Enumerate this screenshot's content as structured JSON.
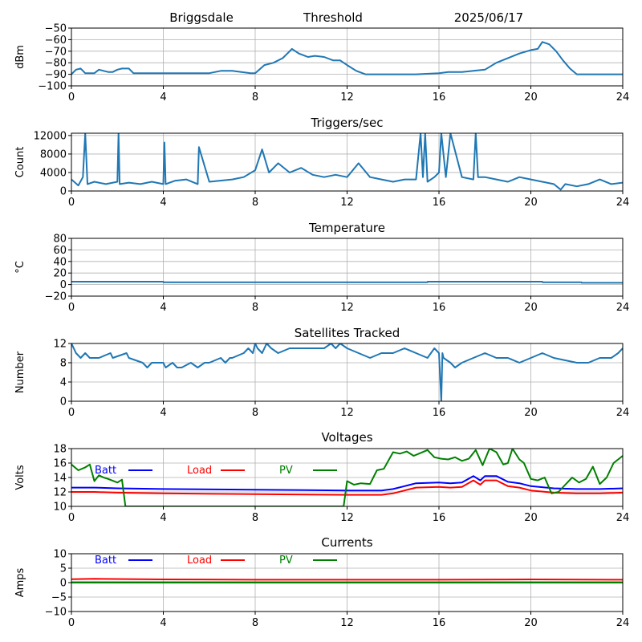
{
  "header": {
    "site": "Briggsdale",
    "label": "Threshold",
    "date": "2025/06/17"
  },
  "colors": {
    "default": "#1f77b4",
    "batt": "#0000ff",
    "load": "#ff0000",
    "pv": "#008000",
    "grid": "#b0b0b0"
  },
  "chart_data": [
    {
      "type": "line",
      "title": "",
      "xlabel": "",
      "ylabel": "dBm",
      "xlim": [
        0,
        24
      ],
      "ylim": [
        -100,
        -50
      ],
      "xticks": [
        0,
        4,
        8,
        12,
        16,
        20,
        24
      ],
      "yticks": [
        -100,
        -90,
        -80,
        -70,
        -60,
        -50
      ],
      "grid": true,
      "series": [
        {
          "x": [
            0,
            0.2,
            0.4,
            0.6,
            1.0,
            1.2,
            1.4,
            1.6,
            1.8,
            2.0,
            2.2,
            2.5,
            2.7,
            3.0,
            4.0,
            5.0,
            6.0,
            6.5,
            7.0,
            7.4,
            7.8,
            8.0,
            8.4,
            8.8,
            9.2,
            9.4,
            9.6,
            9.9,
            10.3,
            10.6,
            11.0,
            11.4,
            11.7,
            12.0,
            12.4,
            12.8,
            13.0,
            14.0,
            15.0,
            16.0,
            16.4,
            17.0,
            18.0,
            18.5,
            19.0,
            19.5,
            20.0,
            20.3,
            20.5,
            20.8,
            21.1,
            21.4,
            21.7,
            22.0,
            23.0,
            24.0
          ],
          "y": [
            -90,
            -86,
            -85,
            -89,
            -89,
            -86,
            -87,
            -88,
            -88,
            -86,
            -85,
            -85,
            -89,
            -89,
            -89,
            -89,
            -89,
            -87,
            -87,
            -88,
            -89,
            -89,
            -82,
            -80,
            -76,
            -72,
            -68,
            -72,
            -75,
            -74,
            -75,
            -78,
            -78,
            -82,
            -87,
            -90,
            -90,
            -90,
            -90,
            -89,
            -88,
            -88,
            -86,
            -80,
            -76,
            -72,
            -69,
            -68,
            -62,
            -64,
            -70,
            -78,
            -85,
            -90,
            -90,
            -90
          ]
        }
      ]
    },
    {
      "type": "line",
      "title": "Triggers/sec",
      "xlabel": "",
      "ylabel": "Count",
      "xlim": [
        0,
        24
      ],
      "ylim": [
        0,
        12500
      ],
      "xticks": [
        0,
        4,
        8,
        12,
        16,
        20,
        24
      ],
      "yticks": [
        0,
        4000,
        8000,
        12000
      ],
      "grid": true,
      "series": [
        {
          "x": [
            0,
            0.3,
            0.5,
            0.6,
            0.7,
            1.0,
            1.5,
            2.0,
            2.05,
            2.1,
            2.5,
            3.0,
            3.5,
            4.0,
            4.05,
            4.1,
            4.5,
            5.0,
            5.5,
            5.55,
            6.0,
            7.0,
            7.5,
            8.0,
            8.3,
            8.6,
            9.0,
            9.5,
            10.0,
            10.5,
            11.0,
            11.5,
            12.0,
            12.5,
            13.0,
            13.5,
            14.0,
            14.5,
            15.0,
            15.2,
            15.3,
            15.4,
            15.5,
            15.8,
            16.0,
            16.1,
            16.3,
            16.5,
            17.0,
            17.5,
            17.6,
            17.7,
            18.0,
            18.5,
            19.0,
            19.5,
            20.0,
            20.5,
            21.0,
            21.3,
            21.5,
            22.0,
            22.5,
            23.0,
            23.5,
            24.0
          ],
          "y": [
            2500,
            1200,
            3000,
            12500,
            1500,
            2000,
            1500,
            2000,
            12500,
            1500,
            1800,
            1500,
            2000,
            1500,
            10500,
            1500,
            2200,
            2500,
            1500,
            9500,
            2000,
            2500,
            3000,
            4500,
            9000,
            4000,
            6000,
            4000,
            5000,
            3500,
            3000,
            3500,
            3000,
            6000,
            3000,
            2500,
            2000,
            2500,
            2500,
            12500,
            3000,
            12500,
            2000,
            3000,
            4000,
            12500,
            3000,
            12500,
            3000,
            2500,
            12500,
            3000,
            3000,
            2500,
            2000,
            3000,
            2500,
            2000,
            1500,
            300,
            1500,
            1000,
            1500,
            2500,
            1500,
            1800
          ]
        }
      ]
    },
    {
      "type": "line",
      "title": "Temperature",
      "xlabel": "",
      "ylabel": "°C",
      "xlim": [
        0,
        24
      ],
      "ylim": [
        -20,
        80
      ],
      "xticks": [
        0,
        4,
        8,
        12,
        16,
        20,
        24
      ],
      "yticks": [
        -20,
        0,
        20,
        40,
        60,
        80
      ],
      "grid": true,
      "series": [
        {
          "x": [
            0,
            4.0,
            4.01,
            15.5,
            15.51,
            20.5,
            20.51,
            22.2,
            22.21,
            24.0
          ],
          "y": [
            5,
            5,
            4,
            4,
            5,
            5,
            4,
            4,
            3,
            3
          ]
        }
      ]
    },
    {
      "type": "line",
      "title": "Satellites Tracked",
      "xlabel": "",
      "ylabel": "Number",
      "xlim": [
        0,
        24
      ],
      "ylim": [
        0,
        12
      ],
      "xticks": [
        0,
        4,
        8,
        12,
        16,
        20,
        24
      ],
      "yticks": [
        0,
        4,
        8,
        12
      ],
      "grid": true,
      "series": [
        {
          "x": [
            0,
            0.1,
            0.2,
            0.4,
            0.6,
            0.8,
            1.2,
            1.7,
            1.8,
            2.4,
            2.5,
            3.1,
            3.3,
            3.5,
            4.0,
            4.1,
            4.4,
            4.6,
            4.8,
            5.2,
            5.5,
            5.8,
            6.0,
            6.5,
            6.7,
            6.9,
            7.0,
            7.5,
            7.7,
            7.9,
            8.0,
            8.1,
            8.3,
            8.5,
            8.7,
            9.0,
            9.5,
            10.0,
            11.0,
            11.3,
            11.5,
            11.7,
            12.0,
            12.5,
            13.0,
            13.5,
            14.0,
            14.5,
            15.0,
            15.5,
            15.8,
            16.0,
            16.1,
            16.15,
            16.2,
            16.5,
            16.7,
            17.0,
            17.5,
            18.0,
            18.5,
            19.0,
            19.5,
            20.0,
            20.5,
            21.0,
            22.0,
            22.5,
            23.0,
            23.5,
            23.8,
            24.0
          ],
          "y": [
            12,
            11,
            10,
            9,
            10,
            9,
            9,
            10,
            9,
            10,
            9,
            8,
            7,
            8,
            8,
            7,
            8,
            7,
            7,
            8,
            7,
            8,
            8,
            9,
            8,
            9,
            9,
            10,
            11,
            10,
            12,
            11,
            10,
            12,
            11,
            10,
            11,
            11,
            11,
            12,
            11,
            12,
            11,
            10,
            9,
            10,
            10,
            11,
            10,
            9,
            11,
            10,
            0,
            10,
            9,
            8,
            7,
            8,
            9,
            10,
            9,
            9,
            8,
            9,
            10,
            9,
            8,
            8,
            9,
            9,
            10,
            11
          ]
        }
      ]
    },
    {
      "type": "line",
      "title": "Voltages",
      "xlabel": "",
      "ylabel": "Volts",
      "xlim": [
        0,
        24
      ],
      "ylim": [
        10,
        18
      ],
      "xticks": [
        0,
        4,
        8,
        12,
        16,
        20,
        24
      ],
      "yticks": [
        10,
        12,
        14,
        16,
        18
      ],
      "grid": true,
      "legend": "top-left",
      "series": [
        {
          "name": "Batt",
          "color": "#0000ff",
          "x": [
            0,
            1,
            2,
            4,
            8,
            12,
            13.5,
            14,
            14.5,
            15,
            16,
            16.5,
            17,
            17.5,
            17.8,
            18,
            18.5,
            19,
            19.5,
            20,
            21,
            22,
            23,
            24
          ],
          "y": [
            12.6,
            12.6,
            12.5,
            12.4,
            12.3,
            12.2,
            12.2,
            12.4,
            12.8,
            13.2,
            13.3,
            13.2,
            13.3,
            14.2,
            13.6,
            14.2,
            14.2,
            13.4,
            13.2,
            12.8,
            12.5,
            12.4,
            12.4,
            12.5
          ]
        },
        {
          "name": "Load",
          "color": "#ff0000",
          "x": [
            0,
            1,
            2,
            4,
            8,
            12,
            13.5,
            14,
            14.5,
            15,
            16,
            16.5,
            17,
            17.5,
            17.8,
            18,
            18.5,
            19,
            19.5,
            20,
            21,
            22,
            23,
            24
          ],
          "y": [
            12.0,
            12.0,
            11.9,
            11.8,
            11.7,
            11.6,
            11.6,
            11.8,
            12.2,
            12.6,
            12.7,
            12.6,
            12.7,
            13.6,
            13.0,
            13.6,
            13.6,
            12.8,
            12.6,
            12.2,
            11.9,
            11.8,
            11.8,
            11.9
          ]
        },
        {
          "name": "PV",
          "color": "#008000",
          "x": [
            0,
            0.3,
            0.6,
            0.8,
            1.0,
            1.2,
            1.4,
            1.6,
            2.0,
            2.2,
            2.35,
            11.85,
            12.0,
            12.3,
            12.6,
            13.0,
            13.3,
            13.6,
            14.0,
            14.3,
            14.6,
            14.9,
            15.2,
            15.5,
            15.8,
            16.1,
            16.4,
            16.7,
            17.0,
            17.3,
            17.6,
            17.9,
            18.2,
            18.5,
            18.8,
            19.0,
            19.2,
            19.5,
            19.7,
            20.0,
            20.3,
            20.6,
            20.9,
            21.2,
            21.5,
            21.8,
            22.1,
            22.4,
            22.7,
            23.0,
            23.3,
            23.6,
            24.0
          ],
          "y": [
            15.8,
            15.0,
            15.4,
            15.8,
            13.5,
            14.3,
            14.0,
            13.8,
            13.3,
            13.7,
            10.0,
            10.0,
            13.5,
            13.0,
            13.2,
            13.1,
            15.0,
            15.2,
            17.5,
            17.3,
            17.6,
            17.0,
            17.4,
            17.8,
            16.8,
            16.6,
            16.5,
            16.8,
            16.3,
            16.6,
            17.8,
            15.7,
            18.0,
            17.5,
            15.8,
            16.0,
            18.0,
            16.5,
            16.0,
            13.8,
            13.6,
            14.0,
            11.8,
            12.0,
            13.0,
            14.0,
            13.3,
            13.8,
            15.5,
            13.1,
            14.0,
            16.0,
            17.0
          ]
        }
      ]
    },
    {
      "type": "line",
      "title": "Currents",
      "xlabel": "",
      "ylabel": "Amps",
      "xlim": [
        0,
        24
      ],
      "ylim": [
        -10,
        10
      ],
      "xticks": [
        0,
        4,
        8,
        12,
        16,
        20,
        24
      ],
      "yticks": [
        -10,
        -5,
        0,
        5,
        10
      ],
      "grid": true,
      "legend": "top-left",
      "series": [
        {
          "name": "Batt",
          "color": "#0000ff",
          "x": [
            0,
            24
          ],
          "y": [
            0.1,
            0.1
          ]
        },
        {
          "name": "Load",
          "color": "#ff0000",
          "x": [
            0,
            1,
            4,
            8,
            12,
            16,
            20,
            24
          ],
          "y": [
            1.2,
            1.3,
            1.1,
            1.0,
            1.0,
            1.0,
            1.1,
            1.0
          ]
        },
        {
          "name": "PV",
          "color": "#008000",
          "x": [
            0,
            24
          ],
          "y": [
            0,
            0
          ]
        }
      ]
    }
  ]
}
